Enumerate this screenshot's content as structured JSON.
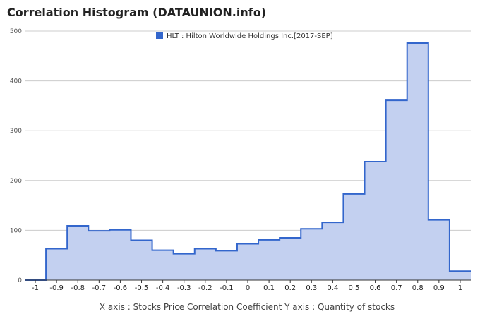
{
  "title": "Correlation Histogram (DATAUNION.info)",
  "caption": "X axis : Stocks Price Correlation Coefficient  Y axis : Quantity of stocks",
  "colors": {
    "line": "#3366cc",
    "fill": "#c3d0f0",
    "grid": "#cccccc",
    "axis": "#333333"
  },
  "chart_data": {
    "type": "area",
    "title": "Correlation Histogram (DATAUNION.info)",
    "xlabel": "X axis : Stocks Price Correlation Coefficient",
    "ylabel": "Y axis : Quantity of stocks",
    "xlim": [
      -1.05,
      1.05
    ],
    "ylim": [
      0,
      500
    ],
    "yticks": [
      0,
      100,
      200,
      300,
      400,
      500
    ],
    "xticks": [
      "-1",
      "-0.9",
      "-0.8",
      "-0.7",
      "-0.6",
      "-0.5",
      "-0.4",
      "-0.3",
      "-0.2",
      "-0.1",
      "0",
      "0.1",
      "0.2",
      "0.3",
      "0.4",
      "0.5",
      "0.6",
      "0.7",
      "0.8",
      "0.9",
      "1"
    ],
    "grid": true,
    "legend_position": "top",
    "series": [
      {
        "name": "HLT : Hilton Worldwide Holdings Inc.[2017-SEP]",
        "x": [
          -1,
          -0.9,
          -0.8,
          -0.7,
          -0.6,
          -0.5,
          -0.4,
          -0.3,
          -0.2,
          -0.1,
          0,
          0.1,
          0.2,
          0.3,
          0.4,
          0.5,
          0.6,
          0.7,
          0.8,
          0.9,
          1
        ],
        "values": [
          0,
          63,
          109,
          99,
          101,
          80,
          60,
          53,
          63,
          59,
          73,
          81,
          85,
          103,
          116,
          173,
          238,
          361,
          476,
          121,
          18
        ]
      }
    ]
  }
}
